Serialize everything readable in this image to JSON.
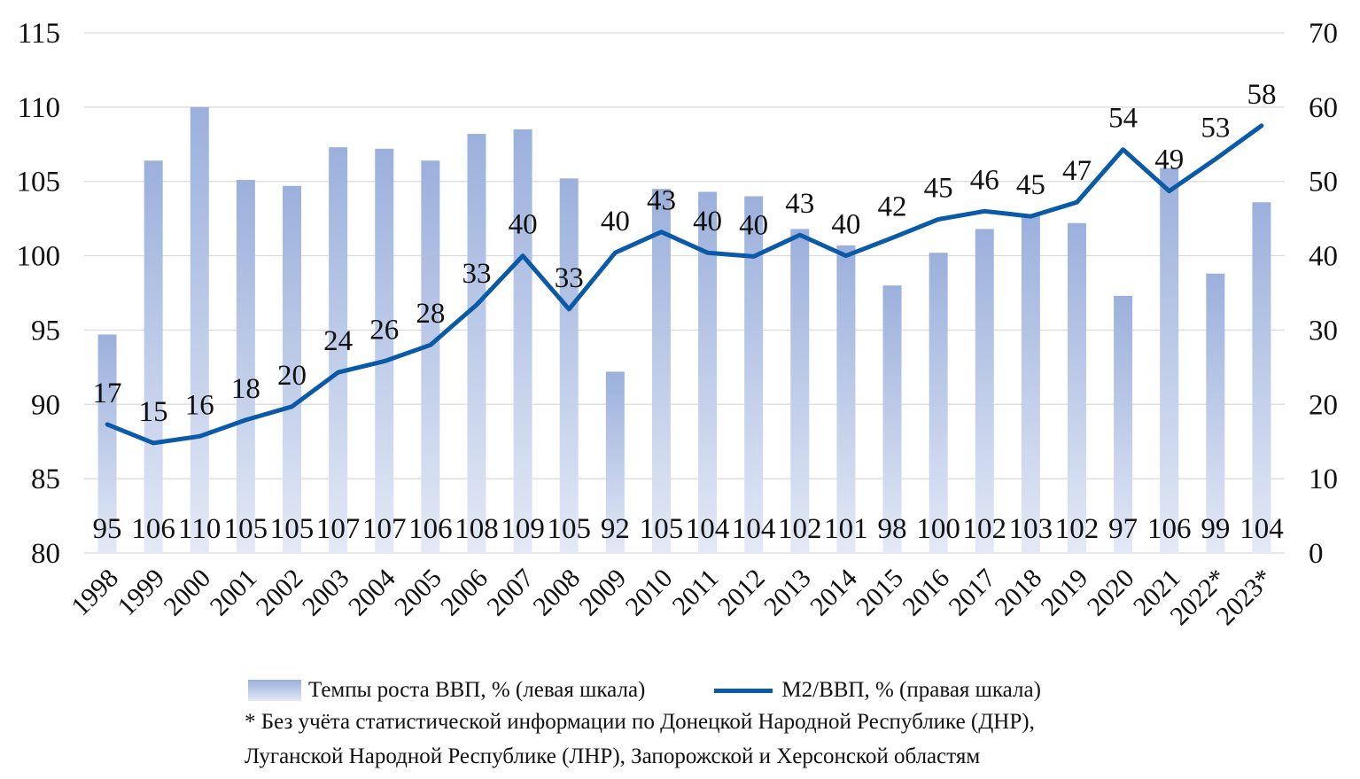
{
  "chart_data": {
    "type": "bar+line",
    "categories": [
      "1998",
      "1999",
      "2000",
      "2001",
      "2002",
      "2003",
      "2004",
      "2005",
      "2006",
      "2007",
      "2008",
      "2009",
      "2010",
      "2011",
      "2012",
      "2013",
      "2014",
      "2015",
      "2016",
      "2017",
      "2018",
      "2019",
      "2020",
      "2021",
      "2022*",
      "2023*"
    ],
    "series": [
      {
        "name": "Темпы роста ВВП, % (левая шкала)",
        "type": "bar",
        "axis": "left",
        "values": [
          94.7,
          106.4,
          110.0,
          105.1,
          104.7,
          107.3,
          107.2,
          106.4,
          108.2,
          108.5,
          105.2,
          92.2,
          104.5,
          104.3,
          104.0,
          101.8,
          100.7,
          98.0,
          100.2,
          101.8,
          102.8,
          102.2,
          97.3,
          105.9,
          98.8,
          103.6
        ],
        "labels": [
          "95",
          "106",
          "110",
          "105",
          "105",
          "107",
          "107",
          "106",
          "108",
          "109",
          "105",
          "92",
          "105",
          "104",
          "104",
          "102",
          "101",
          "98",
          "100",
          "102",
          "103",
          "102",
          "97",
          "106",
          "99",
          "104"
        ]
      },
      {
        "name": "М2/ВВП, % (правая шкала)",
        "type": "line",
        "axis": "right",
        "values": [
          17.3,
          14.8,
          15.7,
          17.9,
          19.7,
          24.3,
          25.8,
          28.0,
          33.4,
          40.0,
          32.8,
          40.4,
          43.2,
          40.4,
          39.9,
          42.8,
          40.0,
          42.4,
          44.9,
          46.0,
          45.3,
          47.2,
          54.3,
          48.7,
          53.0,
          57.5
        ],
        "labels": [
          "17",
          "15",
          "16",
          "18",
          "20",
          "24",
          "26",
          "28",
          "33",
          "40",
          "33",
          "40",
          "43",
          "40",
          "40",
          "43",
          "40",
          "42",
          "45",
          "46",
          "45",
          "47",
          "54",
          "49",
          "53",
          "58"
        ]
      }
    ],
    "y_left": {
      "min": 80,
      "max": 115,
      "ticks": [
        "80",
        "85",
        "90",
        "95",
        "100",
        "105",
        "110",
        "115"
      ]
    },
    "y_right": {
      "min": 0,
      "max": 70,
      "ticks": [
        "0",
        "10",
        "20",
        "30",
        "40",
        "50",
        "60",
        "70"
      ]
    },
    "grid": true,
    "legend_placement": "bottom",
    "colors": {
      "bar_top": "#9bb0dc",
      "bar_bottom": "#e3e9f6",
      "line": "#0a5aa8",
      "grid": "#d9d9d9"
    }
  },
  "legend": {
    "bar_label": "Темпы роста ВВП, % (левая шкала)",
    "line_label": "М2/ВВП, % (правая шкала)"
  },
  "footnote": {
    "line1": "* Без учёта статистической информации по Донецкой Народной Республике (ДНР),",
    "line2": "Луганской Народной Республике (ЛНР), Запорожской и Херсонской областям"
  }
}
